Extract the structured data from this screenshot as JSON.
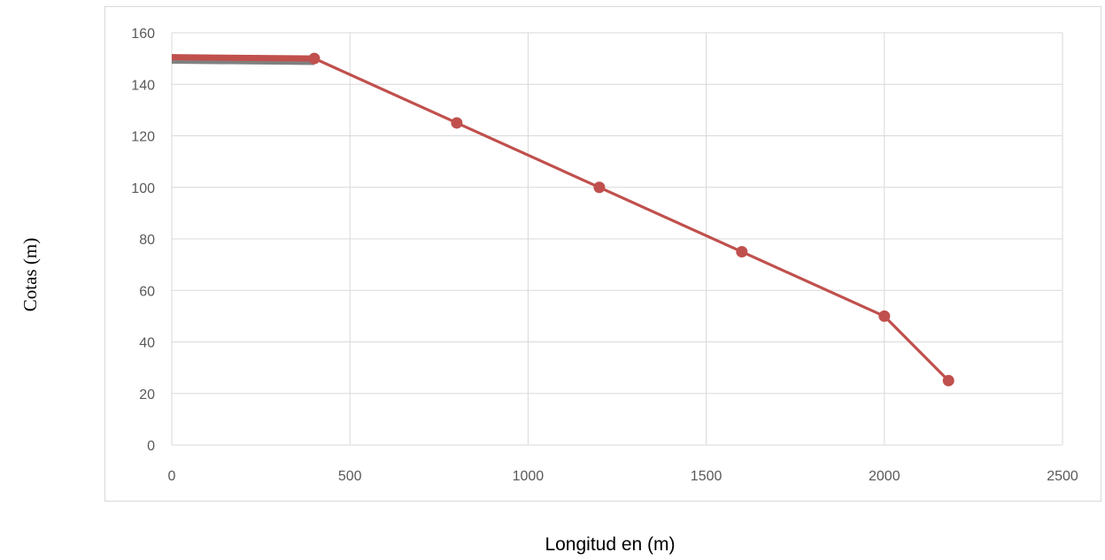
{
  "chart_data": {
    "type": "line",
    "title": "",
    "xlabel": "Longitud en (m)",
    "ylabel": "Cotas (m)",
    "xlim": [
      0,
      2500
    ],
    "ylim": [
      0,
      160
    ],
    "x_ticks": [
      "0",
      "500",
      "1000",
      "1500",
      "2000",
      "2500"
    ],
    "y_ticks": [
      "0",
      "20",
      "40",
      "60",
      "80",
      "100",
      "120",
      "140",
      "160"
    ],
    "grid": true,
    "legend": "none",
    "series": [
      {
        "color": "#808080",
        "marker": false,
        "x": [
          0,
          400
        ],
        "y": [
          149,
          148.5
        ]
      },
      {
        "color": "#c0504d",
        "marker": true,
        "x": [
          0,
          400,
          800,
          1200,
          1600,
          2000,
          2180
        ],
        "y": [
          150.5,
          150,
          125,
          100,
          75,
          50,
          25
        ]
      }
    ]
  }
}
